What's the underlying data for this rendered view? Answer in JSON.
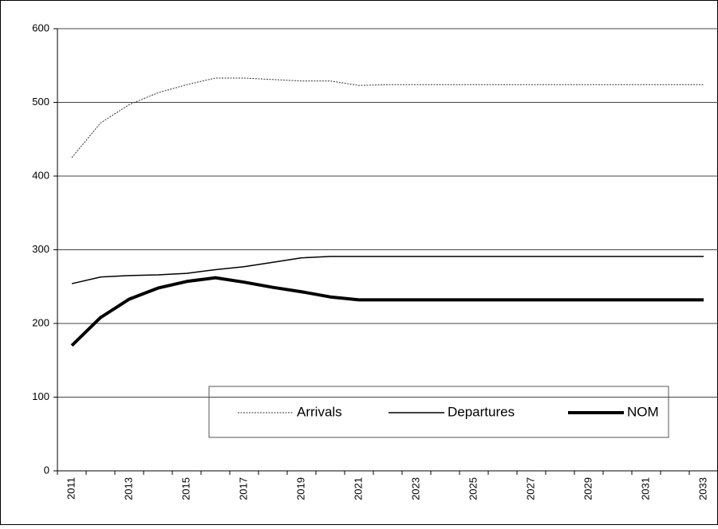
{
  "chart_data": {
    "type": "line",
    "categories": [
      "2011",
      null,
      "2013",
      null,
      "2015",
      null,
      "2017",
      null,
      "2019",
      null,
      "2021",
      null,
      "2023",
      null,
      "2025",
      null,
      "2027",
      null,
      "2029",
      null,
      "2031",
      null,
      "2033"
    ],
    "series": [
      {
        "name": "Arrivals",
        "color": "#333333",
        "style": "dotted",
        "width": 1,
        "values": [
          425,
          472,
          497,
          513,
          524,
          533,
          533,
          531,
          529,
          529,
          523,
          524,
          524,
          524,
          524,
          524,
          524,
          524,
          524,
          524,
          524,
          524,
          524
        ]
      },
      {
        "name": "Departures",
        "color": "#000000",
        "style": "solid",
        "width": 1.5,
        "values": [
          254,
          263,
          265,
          266,
          268,
          273,
          277,
          283,
          289,
          291,
          291,
          291,
          291,
          291,
          291,
          291,
          291,
          291,
          291,
          291,
          291,
          291,
          291
        ]
      },
      {
        "name": "NOM",
        "color": "#000000",
        "style": "solid",
        "width": 4,
        "values": [
          170,
          208,
          233,
          248,
          257,
          262,
          256,
          249,
          243,
          236,
          232,
          232,
          232,
          232,
          232,
          232,
          232,
          232,
          232,
          232,
          232,
          232,
          232
        ]
      }
    ],
    "ylim": [
      0,
      600
    ],
    "yticks": [
      0,
      100,
      200,
      300,
      400,
      500,
      600
    ],
    "grid": true
  }
}
